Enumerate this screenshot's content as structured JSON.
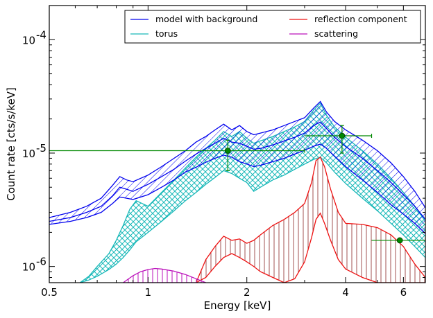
{
  "chart_data": {
    "type": "line",
    "xlabel": "Energy [keV]",
    "ylabel": "Count rate [cts/s/keV]",
    "xscale": "log",
    "yscale": "log",
    "xlim": [
      0.5,
      7.0
    ],
    "ylim": [
      7.2e-07,
      0.0002
    ],
    "grid": false,
    "legend_position": "top-right",
    "legend_columns": 2,
    "x_tick_labels": [
      {
        "value": 0.5,
        "label": "0.5"
      },
      {
        "value": 1,
        "label": "1"
      },
      {
        "value": 2,
        "label": "2"
      },
      {
        "value": 4,
        "label": "4"
      },
      {
        "value": 6,
        "label": "6"
      }
    ],
    "y_tick_labels": [
      {
        "value": 1e-06,
        "base": "10",
        "exp": "-6"
      },
      {
        "value": 1e-05,
        "base": "10",
        "exp": "-5"
      },
      {
        "value": 0.0001,
        "base": "10",
        "exp": "-4"
      }
    ],
    "series": [
      {
        "name": "model with background",
        "color": "#0000ee",
        "style": "band_hatched",
        "x": [
          0.5,
          0.58,
          0.65,
          0.72,
          0.78,
          0.82,
          0.86,
          0.9,
          1.0,
          1.1,
          1.2,
          1.3,
          1.4,
          1.5,
          1.6,
          1.7,
          1.8,
          1.9,
          2.0,
          2.1,
          2.2,
          2.4,
          2.6,
          2.8,
          3.0,
          3.2,
          3.35,
          3.5,
          3.7,
          4.0,
          4.5,
          5.0,
          5.5,
          6.0,
          6.5,
          7.0
        ],
        "lower": [
          2.35e-06,
          2.5e-06,
          2.7e-06,
          3e-06,
          3.6e-06,
          4.1e-06,
          4e-06,
          3.9e-06,
          4.3e-06,
          5e-06,
          5.8e-06,
          6.8e-06,
          7.5e-06,
          8.3e-06,
          9e-06,
          9.6e-06,
          9.2e-06,
          8.4e-06,
          8e-06,
          7.6e-06,
          7.8e-06,
          8.4e-06,
          9e-06,
          9.8e-06,
          1.06e-05,
          1.15e-05,
          1.2e-05,
          1.1e-05,
          9.4e-06,
          7.6e-06,
          5.8e-06,
          4.5e-06,
          3.5e-06,
          2.9e-06,
          2.4e-06,
          1.95e-06
        ],
        "upper": [
          2.7e-06,
          3e-06,
          3.4e-06,
          4e-06,
          5.2e-06,
          6.2e-06,
          5.8e-06,
          5.6e-06,
          6.4e-06,
          7.6e-06,
          9e-06,
          1.05e-05,
          1.25e-05,
          1.4e-05,
          1.6e-05,
          1.8e-05,
          1.6e-05,
          1.75e-05,
          1.55e-05,
          1.45e-05,
          1.5e-05,
          1.6e-05,
          1.75e-05,
          1.9e-05,
          2.05e-05,
          2.5e-05,
          2.85e-05,
          2.3e-05,
          1.9e-05,
          1.6e-05,
          1.3e-05,
          1.05e-05,
          8.2e-06,
          6.2e-06,
          4.6e-06,
          3.3e-06
        ],
        "mid": [
          2.5e-06,
          2.7e-06,
          3e-06,
          3.4e-06,
          4.2e-06,
          5e-06,
          4.8e-06,
          4.6e-06,
          5.3e-06,
          6.2e-06,
          7.2e-06,
          8.5e-06,
          9.8e-06,
          1.1e-05,
          1.22e-05,
          1.35e-05,
          1.25e-05,
          1.22e-05,
          1.15e-05,
          1.08e-05,
          1.1e-05,
          1.18e-05,
          1.28e-05,
          1.38e-05,
          1.5e-05,
          1.75e-05,
          1.88e-05,
          1.65e-05,
          1.38e-05,
          1.14e-05,
          9e-06,
          7e-06,
          5.5e-06,
          4.3e-06,
          3.4e-06,
          2.6e-06
        ]
      },
      {
        "name": "torus",
        "color": "#17b8b8",
        "style": "band_crosshatched",
        "x": [
          0.62,
          0.66,
          0.7,
          0.76,
          0.8,
          0.84,
          0.88,
          0.92,
          1.0,
          1.1,
          1.2,
          1.3,
          1.4,
          1.5,
          1.6,
          1.7,
          1.8,
          1.9,
          2.0,
          2.1,
          2.2,
          2.4,
          2.6,
          2.8,
          3.0,
          3.2,
          3.35,
          3.5,
          3.7,
          4.0,
          4.5,
          5.0,
          5.5,
          6.0,
          6.5,
          7.0
        ],
        "lower": [
          7.2e-07,
          7.6e-07,
          8.2e-07,
          9.4e-07,
          1.05e-06,
          1.2e-06,
          1.4e-06,
          1.65e-06,
          2e-06,
          2.5e-06,
          3.1e-06,
          3.8e-06,
          4.5e-06,
          5.3e-06,
          6.1e-06,
          7e-06,
          6.6e-06,
          6e-06,
          5.5e-06,
          4.6e-06,
          5e-06,
          5.8e-06,
          6.4e-06,
          7.2e-06,
          8e-06,
          8.8e-06,
          9.2e-06,
          8.2e-06,
          6.8e-06,
          5.4e-06,
          4e-06,
          3.1e-06,
          2.4e-06,
          1.9e-06,
          1.5e-06,
          1.2e-06
        ],
        "upper": [
          7.2e-07,
          8.2e-07,
          1e-06,
          1.3e-06,
          1.7e-06,
          2.3e-06,
          3.2e-06,
          3.8e-06,
          3.4e-06,
          4.5e-06,
          5.8e-06,
          7.4e-06,
          9.2e-06,
          1.1e-05,
          1.3e-05,
          1.55e-05,
          1.4e-05,
          1.55e-05,
          1.35e-05,
          1.22e-05,
          1.28e-05,
          1.4e-05,
          1.55e-05,
          1.7e-05,
          1.9e-05,
          2.4e-05,
          2.75e-05,
          2.15e-05,
          1.7e-05,
          1.38e-05,
          1.05e-05,
          8e-06,
          6e-06,
          4.5e-06,
          3.4e-06,
          2.5e-06
        ]
      },
      {
        "name": "reflection component",
        "color": "#ee1111",
        "style": "band_vertical_hatch",
        "x": [
          1.4,
          1.5,
          1.6,
          1.7,
          1.8,
          1.9,
          2.0,
          2.1,
          2.2,
          2.4,
          2.6,
          2.8,
          3.0,
          3.15,
          3.25,
          3.35,
          3.45,
          3.6,
          3.8,
          4.0,
          4.5,
          5.0,
          5.5,
          6.0,
          6.5,
          7.0
        ],
        "lower": [
          7.2e-07,
          8e-07,
          1e-06,
          1.2e-06,
          1.3e-06,
          1.2e-06,
          1.1e-06,
          1e-06,
          9e-07,
          8e-07,
          7.2e-07,
          7.8e-07,
          1.1e-06,
          1.8e-06,
          2.6e-06,
          2.95e-06,
          2.4e-06,
          1.7e-06,
          1.15e-06,
          9.5e-07,
          8e-07,
          7.2e-07,
          7.2e-07,
          7.2e-07,
          7.2e-07,
          7.2e-07
        ],
        "upper": [
          7.2e-07,
          1.15e-06,
          1.5e-06,
          1.85e-06,
          1.7e-06,
          1.75e-06,
          1.6e-06,
          1.7e-06,
          1.9e-06,
          2.3e-06,
          2.6e-06,
          3e-06,
          3.6e-06,
          5.5e-06,
          8.6e-06,
          9.2e-06,
          7.6e-06,
          4.8e-06,
          3e-06,
          2.4e-06,
          2.35e-06,
          2.2e-06,
          1.9e-06,
          1.5e-06,
          1.05e-06,
          8e-07
        ]
      },
      {
        "name": "scattering",
        "color": "#bb11bb",
        "style": "band_hatched",
        "x": [
          0.84,
          0.9,
          0.95,
          1.0,
          1.05,
          1.1,
          1.2,
          1.3,
          1.4,
          1.5
        ],
        "lower": [
          7.2e-07,
          7.2e-07,
          7.2e-07,
          7.2e-07,
          7.2e-07,
          7.2e-07,
          7.2e-07,
          7.2e-07,
          7.2e-07,
          7.2e-07
        ],
        "upper": [
          7.2e-07,
          8.3e-07,
          9e-07,
          9.4e-07,
          9.6e-07,
          9.5e-07,
          9.1e-07,
          8.5e-07,
          7.8e-07,
          7.2e-07
        ]
      }
    ],
    "data_points": {
      "color": "#008800",
      "points": [
        {
          "x": 1.75,
          "y": 1.05e-05,
          "xerr": [
            0.5,
            3.0
          ],
          "yerr": [
            7e-06,
            1.3e-05
          ]
        },
        {
          "x": 3.9,
          "y": 1.42e-05,
          "xerr": [
            3.0,
            4.8
          ],
          "yerr": [
            1e-05,
            1.75e-05
          ]
        },
        {
          "x": 5.85,
          "y": 1.7e-06,
          "xerr": [
            4.8,
            7.0
          ],
          "yerr": [
            1.7e-06,
            1.7e-06
          ]
        }
      ]
    }
  }
}
